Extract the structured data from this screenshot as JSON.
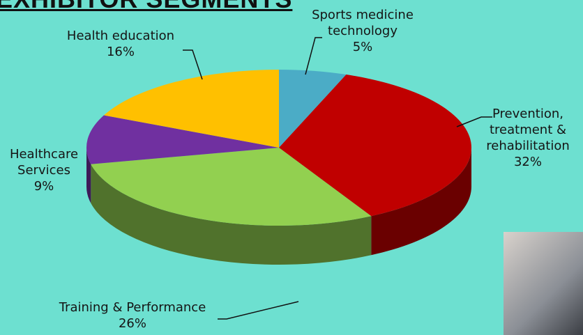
{
  "chart_data": {
    "type": "pie",
    "title": "EXHIBITOR SEGMENTS",
    "categories": [
      "Sports medicine technology",
      "Prevention, treatment & rehabilitation",
      "Training & Performance",
      "Healthcare Services",
      "Health education"
    ],
    "values": [
      5,
      32,
      26,
      9,
      16
    ],
    "value_labels": [
      "5%",
      "32%",
      "26%",
      "9%",
      "16%"
    ],
    "colors": [
      "#4bacc6",
      "#c00000",
      "#92d050",
      "#7030a0",
      "#ffc000"
    ]
  }
}
